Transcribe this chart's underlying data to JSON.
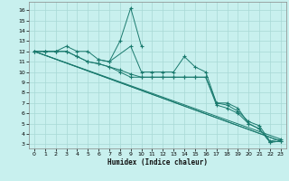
{
  "xlabel": "Humidex (Indice chaleur)",
  "background_color": "#c8f0ee",
  "grid_color": "#a8d8d5",
  "line_color": "#1a7a6e",
  "xlim": [
    -0.5,
    23.5
  ],
  "ylim": [
    2.6,
    16.8
  ],
  "xticks": [
    0,
    1,
    2,
    3,
    4,
    5,
    6,
    7,
    8,
    9,
    10,
    11,
    12,
    13,
    14,
    15,
    16,
    17,
    18,
    19,
    20,
    21,
    22,
    23
  ],
  "yticks": [
    3,
    4,
    5,
    6,
    7,
    8,
    9,
    10,
    11,
    12,
    13,
    14,
    15,
    16
  ],
  "line_max_x": [
    0,
    1,
    2,
    3,
    4,
    5,
    6,
    7,
    9,
    10,
    11,
    12,
    13,
    14,
    15,
    16,
    17,
    18,
    19,
    20,
    21,
    22,
    23
  ],
  "line_max_y": [
    12,
    12,
    12,
    12.5,
    12,
    12,
    11.2,
    11,
    12.5,
    10,
    10,
    10,
    10,
    11.5,
    10.5,
    10,
    7,
    7,
    6.5,
    5,
    4.5,
    3.2,
    3.3
  ],
  "line_mid_x": [
    0,
    1,
    2,
    3,
    4,
    5,
    6,
    7,
    8,
    9,
    10,
    11,
    12,
    13,
    14,
    15,
    16,
    17,
    18,
    19,
    20,
    21,
    22,
    23
  ],
  "line_mid_y": [
    12,
    12,
    12,
    12,
    11.5,
    11,
    10.8,
    10.5,
    10.2,
    9.8,
    9.5,
    9.5,
    9.5,
    9.5,
    9.5,
    9.5,
    9.5,
    7,
    6.8,
    6.2,
    5.2,
    4.8,
    3.3,
    3.5
  ],
  "line_min_x": [
    0,
    1,
    2,
    3,
    4,
    5,
    6,
    7,
    8,
    9,
    10,
    11,
    12,
    13,
    14,
    15,
    16,
    17,
    18,
    19,
    20,
    21,
    22,
    23
  ],
  "line_min_y": [
    12,
    12,
    12,
    12,
    11.5,
    11,
    10.8,
    10.5,
    10.0,
    9.5,
    9.5,
    9.5,
    9.5,
    9.5,
    9.5,
    9.5,
    9.5,
    6.8,
    6.5,
    6.0,
    5.0,
    4.5,
    3.2,
    3.3
  ],
  "spike_x": [
    6,
    7,
    8,
    9,
    10
  ],
  "spike_y": [
    11.2,
    11,
    13.0,
    16.2,
    12.5
  ]
}
